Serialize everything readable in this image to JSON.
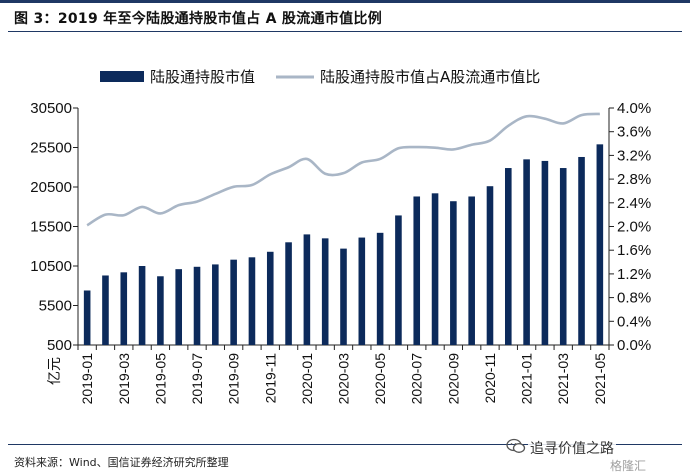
{
  "title": "图 3：2019 年至今陆股通持股市值占 A 股流通市值比例",
  "source": "资料来源：Wind、国信证券经济研究所整理",
  "watermark": "追寻价值之路",
  "watermark_sub": "格隆汇",
  "colors": {
    "bar": "#0c2a5b",
    "line": "#a9b6c6",
    "rule": "#1f3864"
  },
  "chart_data": {
    "type": "bar+line",
    "x_unit_label": "亿元",
    "categories": [
      "2019-01",
      "2019-02",
      "2019-03",
      "2019-04",
      "2019-05",
      "2019-06",
      "2019-07",
      "2019-08",
      "2019-09",
      "2019-10",
      "2019-11",
      "2019-12",
      "2020-01",
      "2020-02",
      "2020-03",
      "2020-04",
      "2020-05",
      "2020-06",
      "2020-07",
      "2020-08",
      "2020-09",
      "2020-10",
      "2020-11",
      "2020-12",
      "2021-01",
      "2021-02",
      "2021-03",
      "2021-04",
      "2021-05"
    ],
    "x_tick_labels": [
      "2019-01",
      "2019-03",
      "2019-05",
      "2019-07",
      "2019-09",
      "2019-11",
      "2020-01",
      "2020-03",
      "2020-05",
      "2020-07",
      "2020-09",
      "2020-11",
      "2021-01",
      "2021-03",
      "2021-05"
    ],
    "series": [
      {
        "name": "陆股通持股市值",
        "type": "bar",
        "axis": "left",
        "values": [
          7400,
          9300,
          9700,
          10500,
          9200,
          10100,
          10400,
          10700,
          11300,
          11600,
          12300,
          13500,
          14500,
          14000,
          12700,
          14100,
          14700,
          16900,
          19300,
          19700,
          18700,
          19300,
          20600,
          22900,
          24000,
          23800,
          22900,
          24300,
          25900
        ]
      },
      {
        "name": "陆股通持股市值占A股流通市值比",
        "type": "line",
        "axis": "right",
        "values": [
          2.02,
          2.2,
          2.19,
          2.33,
          2.22,
          2.36,
          2.42,
          2.55,
          2.67,
          2.7,
          2.88,
          3.0,
          3.14,
          2.89,
          2.9,
          3.08,
          3.14,
          3.32,
          3.34,
          3.33,
          3.3,
          3.38,
          3.45,
          3.7,
          3.86,
          3.82,
          3.74,
          3.88,
          3.9
        ]
      }
    ],
    "y_left": {
      "ticks": [
        "500",
        "5500",
        "10500",
        "15500",
        "20500",
        "25500",
        "30500"
      ],
      "min": 500,
      "max": 30500
    },
    "y_right": {
      "ticks": [
        "0.0%",
        "0.4%",
        "0.8%",
        "1.2%",
        "1.6%",
        "2.0%",
        "2.4%",
        "2.8%",
        "3.2%",
        "3.6%",
        "4.0%"
      ],
      "min": 0,
      "max": 4.0
    },
    "legend_position": "top",
    "grid": false
  }
}
